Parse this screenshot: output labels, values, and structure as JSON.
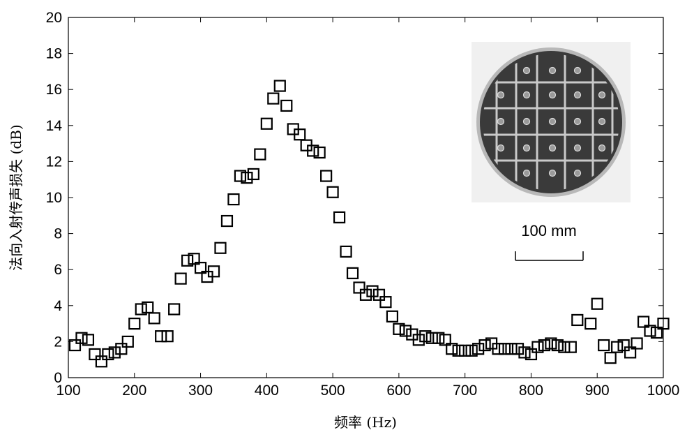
{
  "chart_data": {
    "type": "scatter",
    "xlabel": "频率 (Hz)",
    "ylabel": "法向入射传声损失 (dB)",
    "xlim": [
      100,
      1000
    ],
    "ylim": [
      0,
      20
    ],
    "x_ticks": [
      100,
      200,
      300,
      400,
      500,
      600,
      700,
      800,
      900,
      1000
    ],
    "y_ticks": [
      0,
      2,
      4,
      6,
      8,
      10,
      12,
      14,
      16,
      18,
      20
    ],
    "grid": false,
    "marker": "open-square",
    "points": [
      {
        "x": 110,
        "y": 1.8
      },
      {
        "x": 120,
        "y": 2.2
      },
      {
        "x": 130,
        "y": 2.1
      },
      {
        "x": 140,
        "y": 1.3
      },
      {
        "x": 150,
        "y": 0.9
      },
      {
        "x": 160,
        "y": 1.3
      },
      {
        "x": 170,
        "y": 1.4
      },
      {
        "x": 180,
        "y": 1.6
      },
      {
        "x": 190,
        "y": 2.0
      },
      {
        "x": 200,
        "y": 3.0
      },
      {
        "x": 210,
        "y": 3.8
      },
      {
        "x": 220,
        "y": 3.9
      },
      {
        "x": 230,
        "y": 3.3
      },
      {
        "x": 240,
        "y": 2.3
      },
      {
        "x": 250,
        "y": 2.3
      },
      {
        "x": 260,
        "y": 3.8
      },
      {
        "x": 270,
        "y": 5.5
      },
      {
        "x": 280,
        "y": 6.5
      },
      {
        "x": 290,
        "y": 6.6
      },
      {
        "x": 300,
        "y": 6.1
      },
      {
        "x": 310,
        "y": 5.6
      },
      {
        "x": 320,
        "y": 5.9
      },
      {
        "x": 330,
        "y": 7.2
      },
      {
        "x": 340,
        "y": 8.7
      },
      {
        "x": 350,
        "y": 9.9
      },
      {
        "x": 360,
        "y": 11.2
      },
      {
        "x": 370,
        "y": 11.1
      },
      {
        "x": 380,
        "y": 11.3
      },
      {
        "x": 390,
        "y": 12.4
      },
      {
        "x": 400,
        "y": 14.1
      },
      {
        "x": 410,
        "y": 15.5
      },
      {
        "x": 420,
        "y": 16.2
      },
      {
        "x": 430,
        "y": 15.1
      },
      {
        "x": 440,
        "y": 13.8
      },
      {
        "x": 450,
        "y": 13.5
      },
      {
        "x": 460,
        "y": 12.9
      },
      {
        "x": 470,
        "y": 12.6
      },
      {
        "x": 480,
        "y": 12.5
      },
      {
        "x": 490,
        "y": 11.2
      },
      {
        "x": 500,
        "y": 10.3
      },
      {
        "x": 510,
        "y": 8.9
      },
      {
        "x": 520,
        "y": 7.0
      },
      {
        "x": 530,
        "y": 5.8
      },
      {
        "x": 540,
        "y": 5.0
      },
      {
        "x": 550,
        "y": 4.6
      },
      {
        "x": 560,
        "y": 4.8
      },
      {
        "x": 570,
        "y": 4.6
      },
      {
        "x": 580,
        "y": 4.2
      },
      {
        "x": 590,
        "y": 3.4
      },
      {
        "x": 600,
        "y": 2.7
      },
      {
        "x": 610,
        "y": 2.6
      },
      {
        "x": 620,
        "y": 2.4
      },
      {
        "x": 630,
        "y": 2.1
      },
      {
        "x": 640,
        "y": 2.3
      },
      {
        "x": 650,
        "y": 2.2
      },
      {
        "x": 660,
        "y": 2.2
      },
      {
        "x": 670,
        "y": 2.1
      },
      {
        "x": 680,
        "y": 1.6
      },
      {
        "x": 690,
        "y": 1.5
      },
      {
        "x": 700,
        "y": 1.5
      },
      {
        "x": 710,
        "y": 1.5
      },
      {
        "x": 720,
        "y": 1.6
      },
      {
        "x": 730,
        "y": 1.8
      },
      {
        "x": 740,
        "y": 1.9
      },
      {
        "x": 750,
        "y": 1.6
      },
      {
        "x": 760,
        "y": 1.6
      },
      {
        "x": 770,
        "y": 1.6
      },
      {
        "x": 780,
        "y": 1.6
      },
      {
        "x": 790,
        "y": 1.4
      },
      {
        "x": 800,
        "y": 1.3
      },
      {
        "x": 810,
        "y": 1.7
      },
      {
        "x": 820,
        "y": 1.8
      },
      {
        "x": 830,
        "y": 1.9
      },
      {
        "x": 840,
        "y": 1.8
      },
      {
        "x": 850,
        "y": 1.7
      },
      {
        "x": 860,
        "y": 1.7
      },
      {
        "x": 870,
        "y": 3.2
      },
      {
        "x": 890,
        "y": 3.0
      },
      {
        "x": 900,
        "y": 4.1
      },
      {
        "x": 910,
        "y": 1.8
      },
      {
        "x": 920,
        "y": 1.1
      },
      {
        "x": 930,
        "y": 1.7
      },
      {
        "x": 940,
        "y": 1.8
      },
      {
        "x": 950,
        "y": 1.4
      },
      {
        "x": 960,
        "y": 1.9
      },
      {
        "x": 970,
        "y": 3.1
      },
      {
        "x": 980,
        "y": 2.6
      },
      {
        "x": 990,
        "y": 2.5
      },
      {
        "x": 1000,
        "y": 3.0
      }
    ]
  },
  "inset": {
    "scale_label": "100 mm",
    "panel_colors": {
      "background": "#f0f0f0",
      "plate": "#3a3a3a",
      "rim": "#b8b8b8",
      "grid": "#c9c9c9"
    }
  }
}
